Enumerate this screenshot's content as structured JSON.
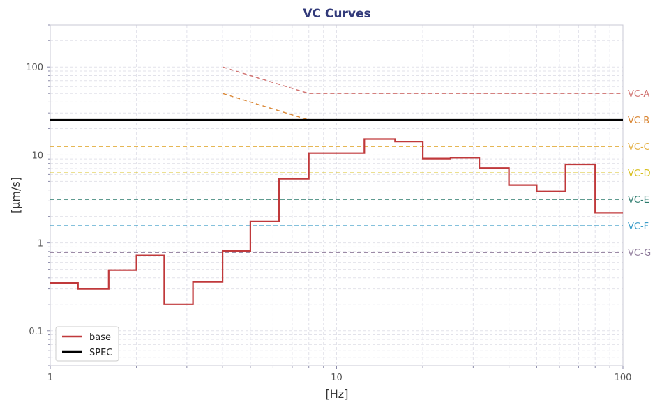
{
  "chart_data": {
    "type": "line",
    "title": "VC Curves",
    "xlabel": "[Hz]",
    "ylabel": "[μm/s]",
    "x_scale": "log",
    "y_scale": "log",
    "xlim": [
      1,
      100
    ],
    "ylim": [
      0.04,
      300
    ],
    "x_ticks": [
      {
        "value": 1,
        "label": "1"
      },
      {
        "value": 10,
        "label": "10"
      },
      {
        "value": 100,
        "label": "100"
      }
    ],
    "y_ticks": [
      {
        "value": 0.1,
        "label": "0.1"
      },
      {
        "value": 1,
        "label": "1"
      },
      {
        "value": 10,
        "label": "10"
      },
      {
        "value": 100,
        "label": "100"
      }
    ],
    "grid": true,
    "legend": {
      "position": "bottom-left",
      "entries": [
        "base",
        "SPEC"
      ]
    },
    "series": [
      {
        "name": "base",
        "style": "step",
        "color": "#c0393b",
        "bands": [
          {
            "f0": 1.0,
            "f1": 1.25,
            "v": 0.35
          },
          {
            "f0": 1.25,
            "f1": 1.6,
            "v": 0.3
          },
          {
            "f0": 1.6,
            "f1": 2.0,
            "v": 0.49
          },
          {
            "f0": 2.0,
            "f1": 2.5,
            "v": 0.72
          },
          {
            "f0": 2.5,
            "f1": 3.15,
            "v": 0.2
          },
          {
            "f0": 3.15,
            "f1": 4.0,
            "v": 0.36
          },
          {
            "f0": 4.0,
            "f1": 5.0,
            "v": 0.81
          },
          {
            "f0": 5.0,
            "f1": 6.3,
            "v": 1.75
          },
          {
            "f0": 6.3,
            "f1": 8.0,
            "v": 5.35
          },
          {
            "f0": 8.0,
            "f1": 12.5,
            "v": 10.5
          },
          {
            "f0": 12.5,
            "f1": 16.0,
            "v": 15.2
          },
          {
            "f0": 16.0,
            "f1": 20.0,
            "v": 14.2
          },
          {
            "f0": 20.0,
            "f1": 25.0,
            "v": 9.1
          },
          {
            "f0": 25.0,
            "f1": 31.5,
            "v": 9.3
          },
          {
            "f0": 31.5,
            "f1": 40.0,
            "v": 7.1
          },
          {
            "f0": 40.0,
            "f1": 50.0,
            "v": 4.55
          },
          {
            "f0": 50.0,
            "f1": 63.0,
            "v": 3.85
          },
          {
            "f0": 63.0,
            "f1": 80.0,
            "v": 7.8
          },
          {
            "f0": 80.0,
            "f1": 100.0,
            "v": 2.2
          }
        ]
      },
      {
        "name": "SPEC",
        "style": "solid",
        "color": "#000000",
        "x": [
          1,
          100
        ],
        "y": [
          25,
          25
        ]
      }
    ],
    "reference_lines": [
      {
        "label": "VC-A",
        "color": "#d0706e",
        "points": [
          [
            4,
            100
          ],
          [
            8,
            50
          ],
          [
            100,
            50
          ]
        ]
      },
      {
        "label": "VC-B",
        "color": "#d98532",
        "points": [
          [
            4,
            50
          ],
          [
            8,
            25
          ],
          [
            100,
            25
          ]
        ]
      },
      {
        "label": "VC-C",
        "color": "#e3ad3c",
        "points": [
          [
            1,
            12.5
          ],
          [
            100,
            12.5
          ]
        ]
      },
      {
        "label": "VC-D",
        "color": "#d8c020",
        "points": [
          [
            1,
            6.25
          ],
          [
            100,
            6.25
          ]
        ]
      },
      {
        "label": "VC-E",
        "color": "#2a7a6c",
        "points": [
          [
            1,
            3.125
          ],
          [
            100,
            3.125
          ]
        ]
      },
      {
        "label": "VC-F",
        "color": "#3a9cc8",
        "points": [
          [
            1,
            1.5625
          ],
          [
            100,
            1.5625
          ]
        ]
      },
      {
        "label": "VC-G",
        "color": "#8e7a9a",
        "points": [
          [
            1,
            0.78
          ],
          [
            100,
            0.78
          ]
        ]
      }
    ]
  }
}
